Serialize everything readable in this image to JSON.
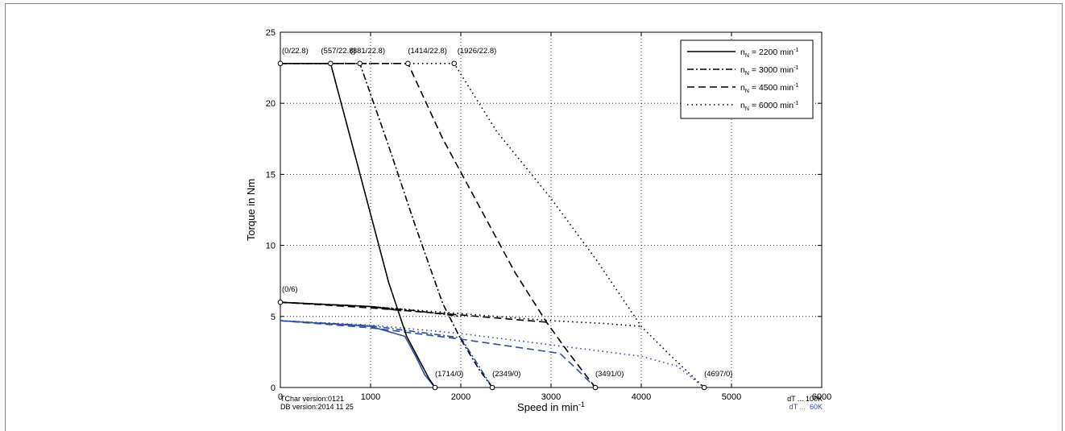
{
  "chart_data": {
    "type": "line",
    "xlabel": "Speed in min",
    "xlabel_sup": "-1",
    "ylabel": "Torque in Nm",
    "xlim": [
      0,
      6000
    ],
    "ylim": [
      0,
      25
    ],
    "xticks": [
      "0",
      "1000",
      "2000",
      "3000",
      "4000",
      "5000",
      "6000"
    ],
    "yticks": [
      "0",
      "5",
      "10",
      "15",
      "20",
      "25"
    ],
    "grid": true,
    "legend_position": "top-right",
    "series": [
      {
        "name": "n",
        "sub": "N",
        "value_label": " = 2200 min",
        "sup": "-1",
        "dash": "solid",
        "color": "#000000",
        "x": [
          0,
          557,
          800,
          1000,
          1200,
          1400,
          1550,
          1650,
          1714
        ],
        "y": [
          22.8,
          22.8,
          17.0,
          12.2,
          7.4,
          3.6,
          1.8,
          0.6,
          0
        ]
      },
      {
        "name": "n",
        "sub": "N",
        "value_label": " = 3000 min",
        "sup": "-1",
        "dash": "dashdot",
        "color": "#000000",
        "x": [
          0,
          881,
          1200,
          1500,
          1800,
          2000,
          2200,
          2349
        ],
        "y": [
          22.8,
          22.8,
          17.0,
          11.3,
          5.9,
          3.4,
          1.3,
          0
        ]
      },
      {
        "name": "n",
        "sub": "N",
        "value_label": " = 4500 min",
        "sup": "-1",
        "dash": "dashed",
        "color": "#000000",
        "x": [
          0,
          1414,
          1800,
          2200,
          2600,
          2950,
          3200,
          3491
        ],
        "y": [
          22.8,
          22.8,
          17.5,
          12.8,
          8.1,
          4.6,
          2.4,
          0
        ]
      },
      {
        "name": "n",
        "sub": "N",
        "value_label": " = 6000 min",
        "sup": "-1",
        "dash": "dotted",
        "color": "#000000",
        "x": [
          0,
          1926,
          2400,
          3000,
          3500,
          4000,
          4300,
          4697
        ],
        "y": [
          22.8,
          22.8,
          18.0,
          13.3,
          9.0,
          4.3,
          2.4,
          0
        ]
      }
    ],
    "continuous_100K": [
      {
        "dash": "solid",
        "x": [
          0,
          1000,
          1340
        ],
        "y": [
          6.0,
          5.7,
          5.4
        ]
      },
      {
        "dash": "dashdot",
        "x": [
          0,
          1000,
          1500,
          2000
        ],
        "y": [
          6.0,
          5.7,
          5.4,
          5.0
        ]
      },
      {
        "dash": "dashed",
        "x": [
          0,
          1000,
          2000,
          2950
        ],
        "y": [
          6.0,
          5.6,
          5.1,
          4.6
        ]
      },
      {
        "dash": "dotted",
        "x": [
          0,
          1000,
          2000,
          3000,
          3600,
          4000
        ],
        "y": [
          6.0,
          5.7,
          5.2,
          4.7,
          4.5,
          4.3
        ]
      }
    ],
    "continuous_60K": [
      {
        "dash": "solid",
        "x": [
          0,
          1000,
          1380,
          1500,
          1600,
          1714
        ],
        "y": [
          4.7,
          4.3,
          3.6,
          2.2,
          0.9,
          0
        ]
      },
      {
        "dash": "dashdot",
        "x": [
          0,
          1000,
          2000,
          2200,
          2349
        ],
        "y": [
          4.7,
          4.35,
          3.5,
          1.5,
          0
        ]
      },
      {
        "dash": "dashed",
        "x": [
          0,
          1000,
          2000,
          3100,
          3300,
          3491
        ],
        "y": [
          4.7,
          4.2,
          3.4,
          2.4,
          1.2,
          0
        ]
      },
      {
        "dash": "dotted",
        "x": [
          0,
          1000,
          2000,
          3000,
          4000,
          4400,
          4697
        ],
        "y": [
          4.7,
          4.4,
          3.8,
          3.0,
          2.2,
          1.5,
          0
        ]
      }
    ],
    "annotations": [
      {
        "label": "(0/22.8)",
        "x": 0,
        "y": 22.8,
        "dx": 2,
        "dy": -13
      },
      {
        "label": "(557/22.8)",
        "x": 557,
        "y": 22.8,
        "dx": -12,
        "dy": -13
      },
      {
        "label": "(881/22.8)",
        "x": 881,
        "y": 22.8,
        "dx": -12,
        "dy": -13
      },
      {
        "label": "(1414/22.8)",
        "x": 1414,
        "y": 22.8,
        "dx": 0,
        "dy": -13
      },
      {
        "label": "(1926/22.8)",
        "x": 1926,
        "y": 22.8,
        "dx": 4,
        "dy": -13
      },
      {
        "label": "(0/6)",
        "x": 0,
        "y": 6,
        "dx": 2,
        "dy": -13
      },
      {
        "label": "(1714/0)",
        "x": 1714,
        "y": 0,
        "dx": 0,
        "dy": -14
      },
      {
        "label": "(2349/0)",
        "x": 2349,
        "y": 0,
        "dx": 0,
        "dy": -14
      },
      {
        "label": "(3491/0)",
        "x": 3491,
        "y": 0,
        "dx": 0,
        "dy": -14
      },
      {
        "label": "(4697/0)",
        "x": 4697,
        "y": 0,
        "dx": 0,
        "dy": -14
      }
    ],
    "footer_left": [
      "TChar version:0121",
      "DB version:2014 11 25"
    ],
    "footer_right": [
      {
        "text": "dT ... 100K",
        "color": "#000000"
      },
      {
        "text": "dT ...  60K",
        "color": "#2e4fa0"
      }
    ],
    "colors": {
      "limit_100K": "#000000",
      "limit_60K": "#2e4fa0",
      "grid": "#000000"
    }
  }
}
